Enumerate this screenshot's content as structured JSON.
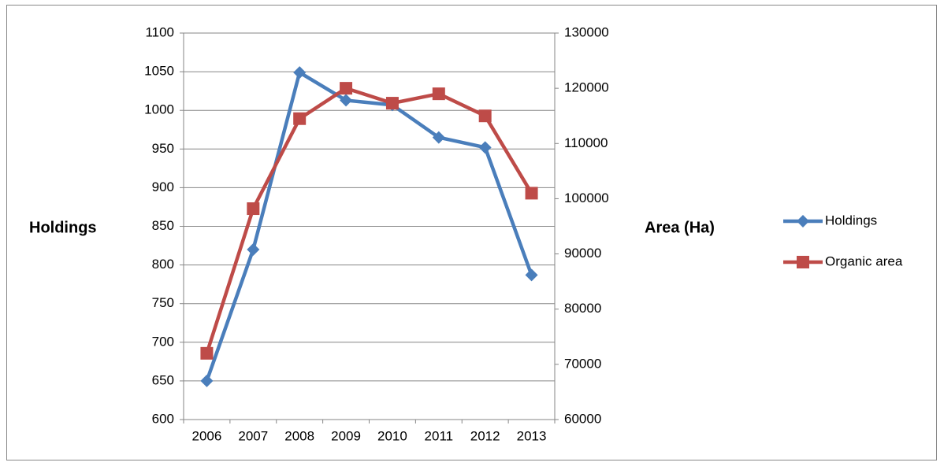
{
  "chart_data": {
    "type": "line",
    "categories": [
      "2006",
      "2007",
      "2008",
      "2009",
      "2010",
      "2011",
      "2012",
      "2013"
    ],
    "y_label": "Holdings",
    "y2_label": "Area (Ha)",
    "series": [
      {
        "name": "Holdings",
        "color": "#4a7ebb",
        "marker": "diamond",
        "values": [
          650,
          820,
          1049,
          1013,
          1007,
          965,
          952,
          787
        ]
      },
      {
        "name": "Organic area",
        "color": "#be4b48",
        "marker": "square",
        "axis": "y2",
        "values": [
          72000,
          98200,
          114500,
          120000,
          117300,
          119000,
          115000,
          101000
        ]
      }
    ],
    "ylim": [
      600,
      1100
    ],
    "yticks": [
      600,
      650,
      700,
      750,
      800,
      850,
      900,
      950,
      1000,
      1050,
      1100
    ],
    "y2lim": [
      60000,
      130000
    ],
    "y2ticks": [
      60000,
      70000,
      80000,
      90000,
      100000,
      110000,
      120000,
      130000
    ],
    "grid": true,
    "legend": "right"
  }
}
